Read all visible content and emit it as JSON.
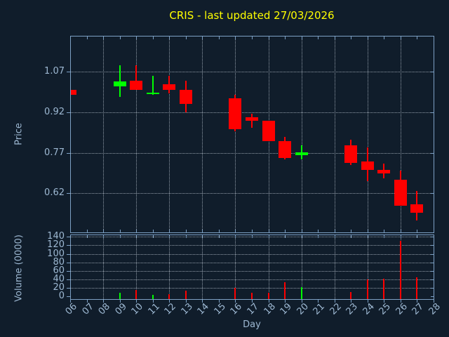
{
  "chart_data": {
    "type": "candlestick",
    "title": "CRIS - last updated 27/03/2026",
    "xlabel": "Day",
    "price_panel": {
      "ylabel": "Price",
      "yticks": [
        0.62,
        0.77,
        0.92,
        1.07
      ],
      "yrange": [
        0.476,
        1.202
      ]
    },
    "volume_panel": {
      "ylabel": "Volume (0000)",
      "yticks": [
        0,
        20,
        40,
        60,
        80,
        100,
        120,
        140
      ],
      "yrange": [
        -6.6,
        145.5
      ]
    },
    "x": {
      "first_day": 6,
      "last_day": 28,
      "tick_labels": [
        "06",
        "07",
        "08",
        "09",
        "10",
        "11",
        "12",
        "13",
        "14",
        "15",
        "16",
        "17",
        "18",
        "19",
        "20",
        "21",
        "22",
        "23",
        "24",
        "25",
        "26",
        "27",
        "28"
      ],
      "gridline_days": [
        8,
        10,
        12,
        14,
        16,
        18,
        20,
        22,
        24,
        26
      ]
    },
    "colors": {
      "background": "#101d2b",
      "border": "#7da0c4",
      "grid": "#a9b4c0",
      "tick_label": "#9db8d2",
      "title": "#ffff00",
      "up": "#00ff00",
      "down": "#ff0000"
    },
    "candles": [
      {
        "day": 6,
        "open": 1.003,
        "high": 1.003,
        "low": 0.985,
        "close": 0.985,
        "volume": 2
      },
      {
        "day": 9,
        "open": 1.017,
        "high": 1.093,
        "low": 0.977,
        "close": 1.034,
        "volume": 8
      },
      {
        "day": 10,
        "open": 1.036,
        "high": 1.093,
        "low": 1.003,
        "close": 1.003,
        "volume": 15
      },
      {
        "day": 11,
        "open": 0.985,
        "high": 1.054,
        "low": 0.985,
        "close": 0.991,
        "volume": 3
      },
      {
        "day": 12,
        "open": 1.023,
        "high": 1.055,
        "low": 0.99,
        "close": 1.003,
        "volume": 5
      },
      {
        "day": 13,
        "open": 1.003,
        "high": 1.036,
        "low": 0.919,
        "close": 0.95,
        "volume": 13
      },
      {
        "day": 16,
        "open": 0.97,
        "high": 0.984,
        "low": 0.85,
        "close": 0.855,
        "volume": 20
      },
      {
        "day": 17,
        "open": 0.902,
        "high": 0.915,
        "low": 0.863,
        "close": 0.888,
        "volume": 9
      },
      {
        "day": 18,
        "open": 0.889,
        "high": 0.889,
        "low": 0.813,
        "close": 0.813,
        "volume": 8
      },
      {
        "day": 19,
        "open": 0.813,
        "high": 0.828,
        "low": 0.744,
        "close": 0.751,
        "volume": 33
      },
      {
        "day": 20,
        "open": 0.762,
        "high": 0.797,
        "low": 0.746,
        "close": 0.772,
        "volume": 21
      },
      {
        "day": 23,
        "open": 0.798,
        "high": 0.817,
        "low": 0.723,
        "close": 0.733,
        "volume": 10
      },
      {
        "day": 24,
        "open": 0.738,
        "high": 0.79,
        "low": 0.666,
        "close": 0.706,
        "volume": 40
      },
      {
        "day": 25,
        "open": 0.706,
        "high": 0.729,
        "low": 0.675,
        "close": 0.694,
        "volume": 42
      },
      {
        "day": 26,
        "open": 0.67,
        "high": 0.703,
        "low": 0.574,
        "close": 0.574,
        "volume": 130
      },
      {
        "day": 27,
        "open": 0.58,
        "high": 0.629,
        "low": 0.519,
        "close": 0.548,
        "volume": 45
      }
    ]
  }
}
